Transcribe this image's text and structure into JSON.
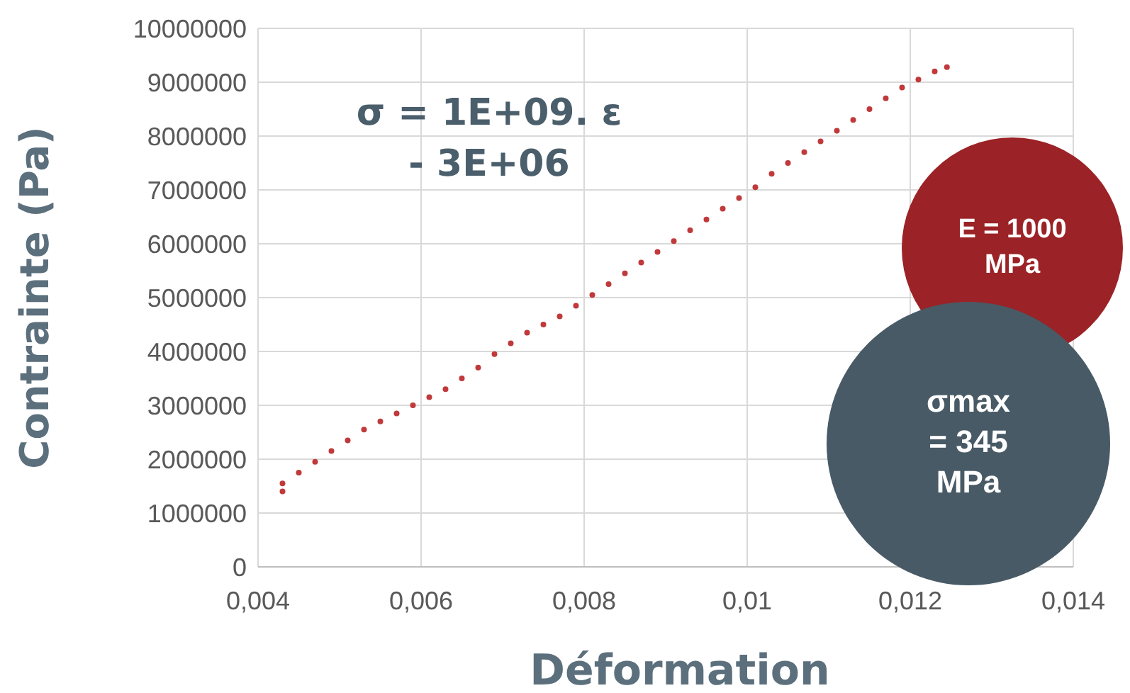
{
  "chart_data": {
    "type": "scatter",
    "xlabel": "Déformation",
    "ylabel": "Contrainte (Pa)",
    "x": [
      0.0043,
      0.0043,
      0.0045,
      0.0047,
      0.0049,
      0.0051,
      0.0053,
      0.0055,
      0.0057,
      0.0059,
      0.0061,
      0.0063,
      0.0065,
      0.0067,
      0.0069,
      0.0071,
      0.0073,
      0.0075,
      0.0077,
      0.0079,
      0.0081,
      0.0083,
      0.0085,
      0.0087,
      0.0089,
      0.0091,
      0.0093,
      0.0095,
      0.0097,
      0.0099,
      0.0101,
      0.0103,
      0.0105,
      0.0107,
      0.0109,
      0.0111,
      0.0113,
      0.0115,
      0.0117,
      0.0119,
      0.0121,
      0.0123,
      0.01245
    ],
    "series": [
      {
        "color": "#c0393b",
        "values": [
          1550000,
          1400000,
          1750000,
          1950000,
          2150000,
          2350000,
          2550000,
          2700000,
          2850000,
          3000000,
          3150000,
          3300000,
          3500000,
          3700000,
          3950000,
          4150000,
          4350000,
          4500000,
          4650000,
          4850000,
          5050000,
          5250000,
          5450000,
          5650000,
          5850000,
          6050000,
          6250000,
          6450000,
          6650000,
          6850000,
          7050000,
          7300000,
          7500000,
          7700000,
          7900000,
          8100000,
          8300000,
          8500000,
          8700000,
          8900000,
          9050000,
          9200000,
          9280000
        ]
      }
    ],
    "xlim": [
      0.004,
      0.014
    ],
    "xticks": [
      {
        "value": 0.004,
        "label": "0,004"
      },
      {
        "value": 0.006,
        "label": "0,006"
      },
      {
        "value": 0.008,
        "label": "0,008"
      },
      {
        "value": 0.01,
        "label": "0,01"
      },
      {
        "value": 0.012,
        "label": "0,012"
      },
      {
        "value": 0.014,
        "label": "0,014"
      }
    ],
    "ylim": [
      0,
      10000000
    ],
    "yticks": [
      0,
      1000000,
      2000000,
      3000000,
      4000000,
      5000000,
      6000000,
      7000000,
      8000000,
      9000000,
      10000000
    ],
    "grid": true,
    "marker": "circle",
    "annotations": [
      "σ = 1E+09. ε - 3E+06",
      "E = 1000 MPa",
      "σmax = 345 MPa"
    ]
  }
}
